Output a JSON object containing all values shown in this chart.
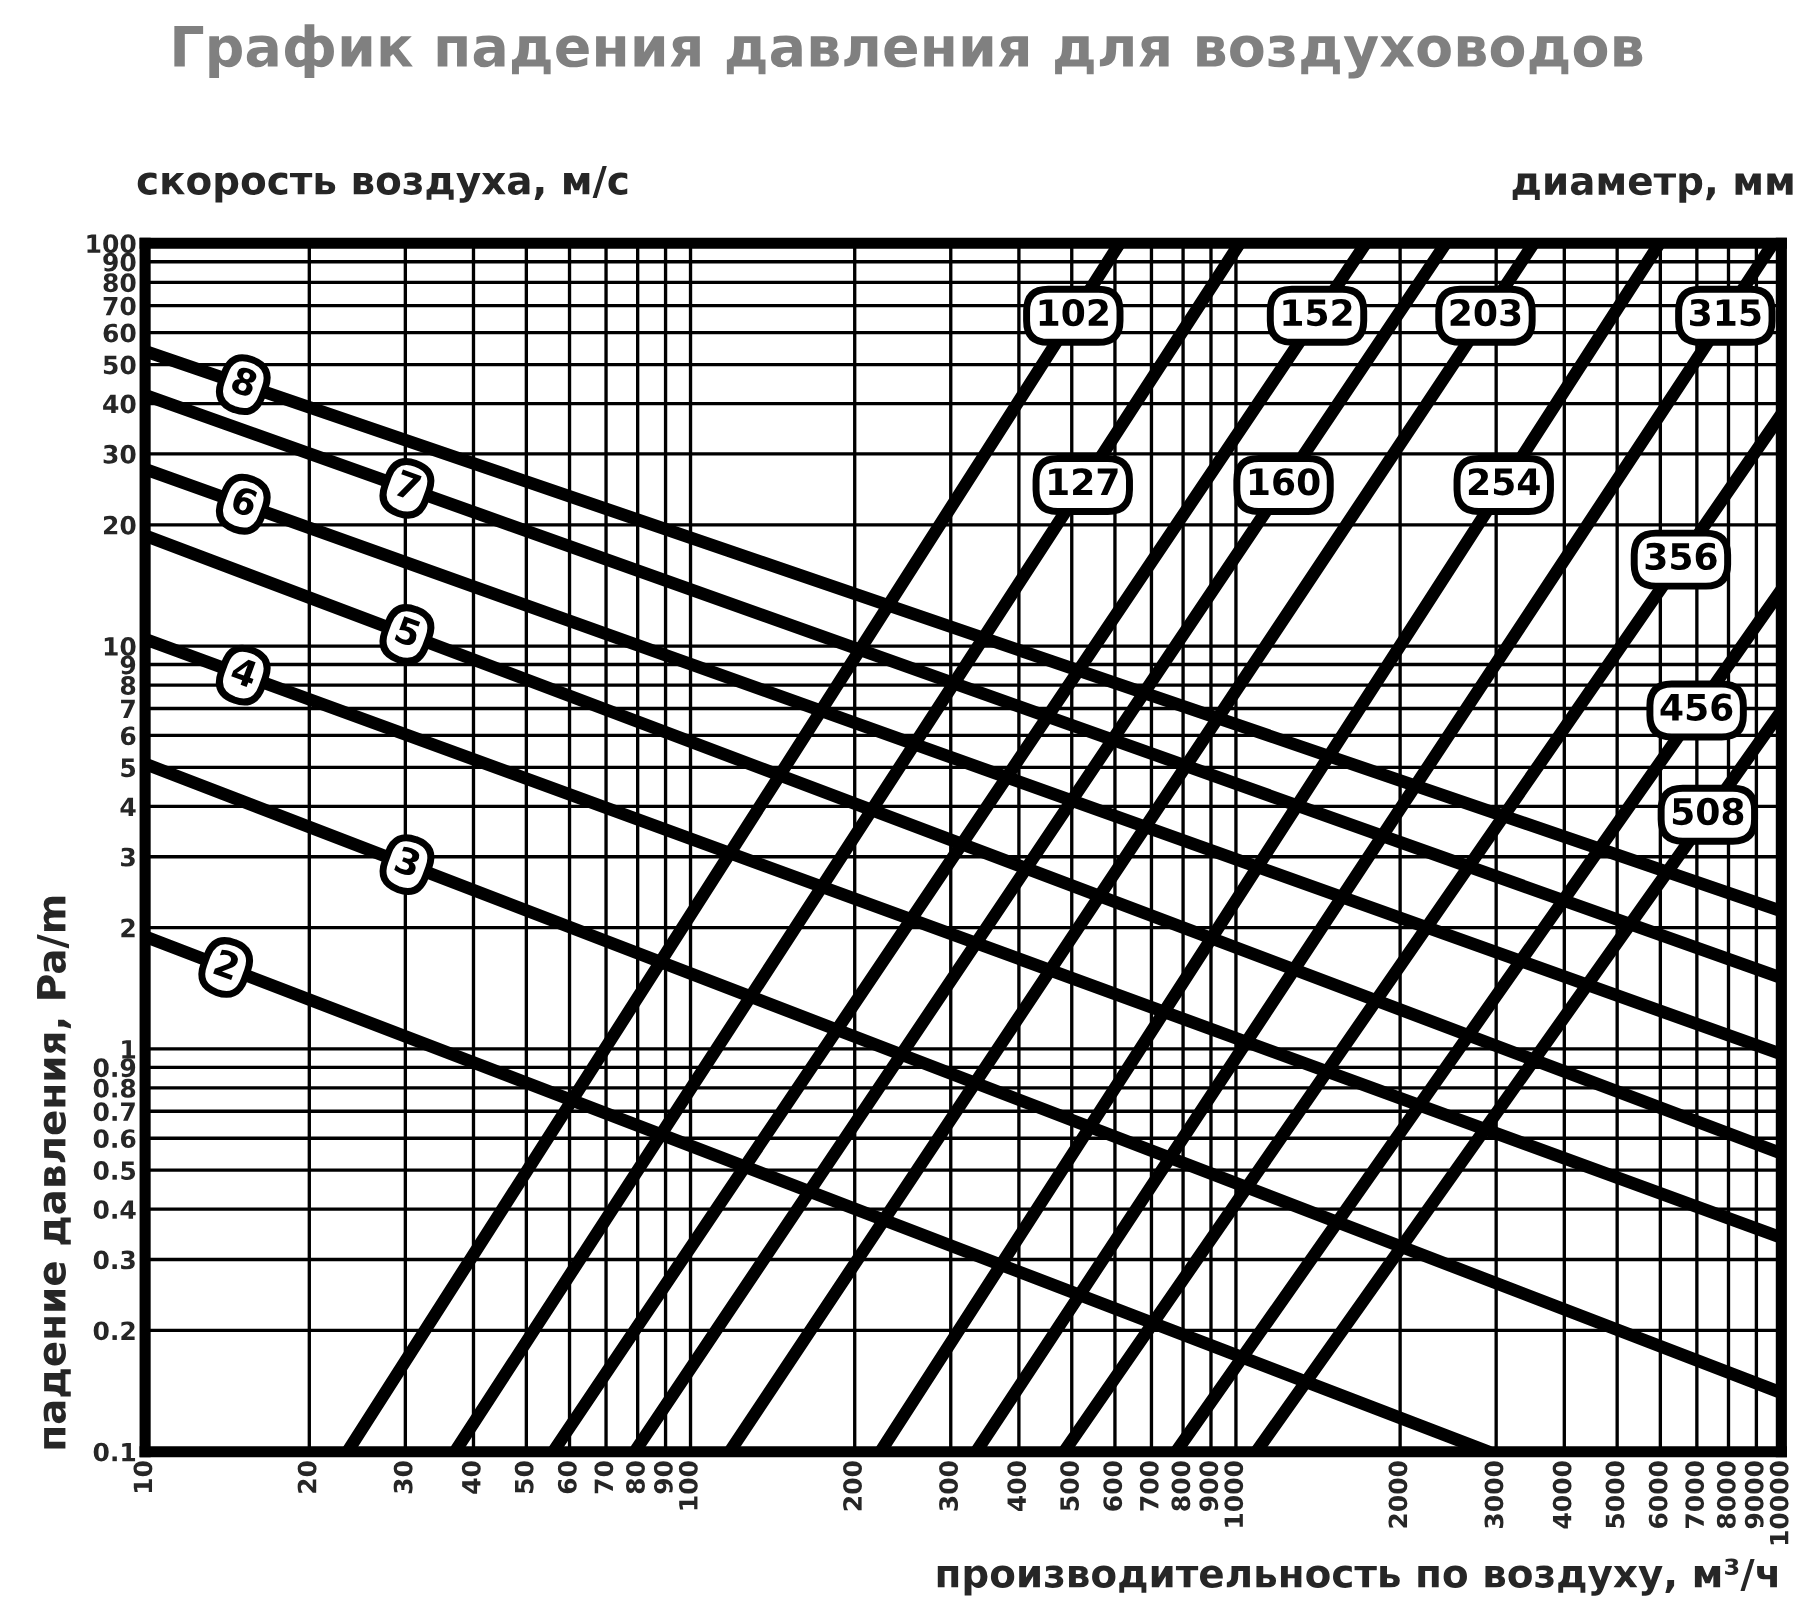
{
  "chart_data": {
    "type": "line",
    "title": "График падения давления для воздуховодов",
    "xlabel": "производительность по воздуху, м³/ч",
    "ylabel": "падение давления, Pa/m",
    "annotations": [
      "скорость воздуха, м/с",
      "диаметр, мм"
    ],
    "log": "xy",
    "grid": true,
    "legend": false,
    "marker": "none",
    "line_style": "solid",
    "xlim": [
      10,
      10000
    ],
    "ylim": [
      0.1,
      100
    ],
    "xticks": [
      10,
      20,
      30,
      40,
      50,
      60,
      70,
      80,
      90,
      100,
      200,
      300,
      400,
      500,
      600,
      700,
      800,
      900,
      1000,
      2000,
      3000,
      4000,
      5000,
      6000,
      7000,
      8000,
      9000,
      10000
    ],
    "yticks": [
      0.1,
      0.2,
      0.3,
      0.4,
      0.5,
      0.6,
      0.7,
      0.8,
      0.9,
      1,
      2,
      3,
      4,
      5,
      6,
      7,
      8,
      9,
      10,
      20,
      30,
      40,
      50,
      60,
      70,
      80,
      90,
      100
    ],
    "series": [
      {
        "name": "2",
        "color": "#000000",
        "x": [
          10,
          2900
        ],
        "values": [
          1.9,
          0.1
        ]
      },
      {
        "name": "3",
        "color": "#000000",
        "x": [
          10,
          10000
        ],
        "values": [
          5.1,
          0.14
        ]
      },
      {
        "name": "4",
        "color": "#000000",
        "x": [
          10,
          10000
        ],
        "values": [
          10.4,
          0.34
        ]
      },
      {
        "name": "5",
        "color": "#000000",
        "x": [
          10,
          10000
        ],
        "values": [
          18.8,
          0.55
        ]
      },
      {
        "name": "6",
        "color": "#000000",
        "x": [
          10,
          10000
        ],
        "values": [
          27.5,
          0.97
        ]
      },
      {
        "name": "7",
        "color": "#000000",
        "x": [
          10,
          10000
        ],
        "values": [
          42,
          1.5
        ]
      },
      {
        "name": "8",
        "color": "#000000",
        "x": [
          10,
          10000
        ],
        "values": [
          54,
          2.2
        ]
      },
      {
        "name": "102",
        "color": "#000000",
        "x": [
          23.5,
          612
        ],
        "values": [
          0.1,
          100
        ]
      },
      {
        "name": "127",
        "color": "#000000",
        "x": [
          37,
          1016
        ],
        "values": [
          0.1,
          100
        ]
      },
      {
        "name": "152",
        "color": "#000000",
        "x": [
          56,
          1730
        ],
        "values": [
          0.1,
          100
        ]
      },
      {
        "name": "160",
        "color": "#000000",
        "x": [
          79,
          2425
        ],
        "values": [
          0.1,
          100
        ]
      },
      {
        "name": "203",
        "color": "#000000",
        "x": [
          118,
          3515
        ],
        "values": [
          0.1,
          100
        ]
      },
      {
        "name": "254",
        "color": "#000000",
        "x": [
          223,
          5980
        ],
        "values": [
          0.1,
          100
        ]
      },
      {
        "name": "315",
        "color": "#000000",
        "x": [
          334,
          9660
        ],
        "values": [
          0.1,
          100
        ]
      },
      {
        "name": "356",
        "color": "#000000",
        "x": [
          484,
          10000
        ],
        "values": [
          0.1,
          37.6
        ]
      },
      {
        "name": "456",
        "color": "#000000",
        "x": [
          777,
          10000
        ],
        "values": [
          0.1,
          13.8
        ]
      },
      {
        "name": "508",
        "color": "#000000",
        "x": [
          1090,
          10000
        ],
        "values": [
          0.1,
          6.9
        ]
      }
    ]
  }
}
